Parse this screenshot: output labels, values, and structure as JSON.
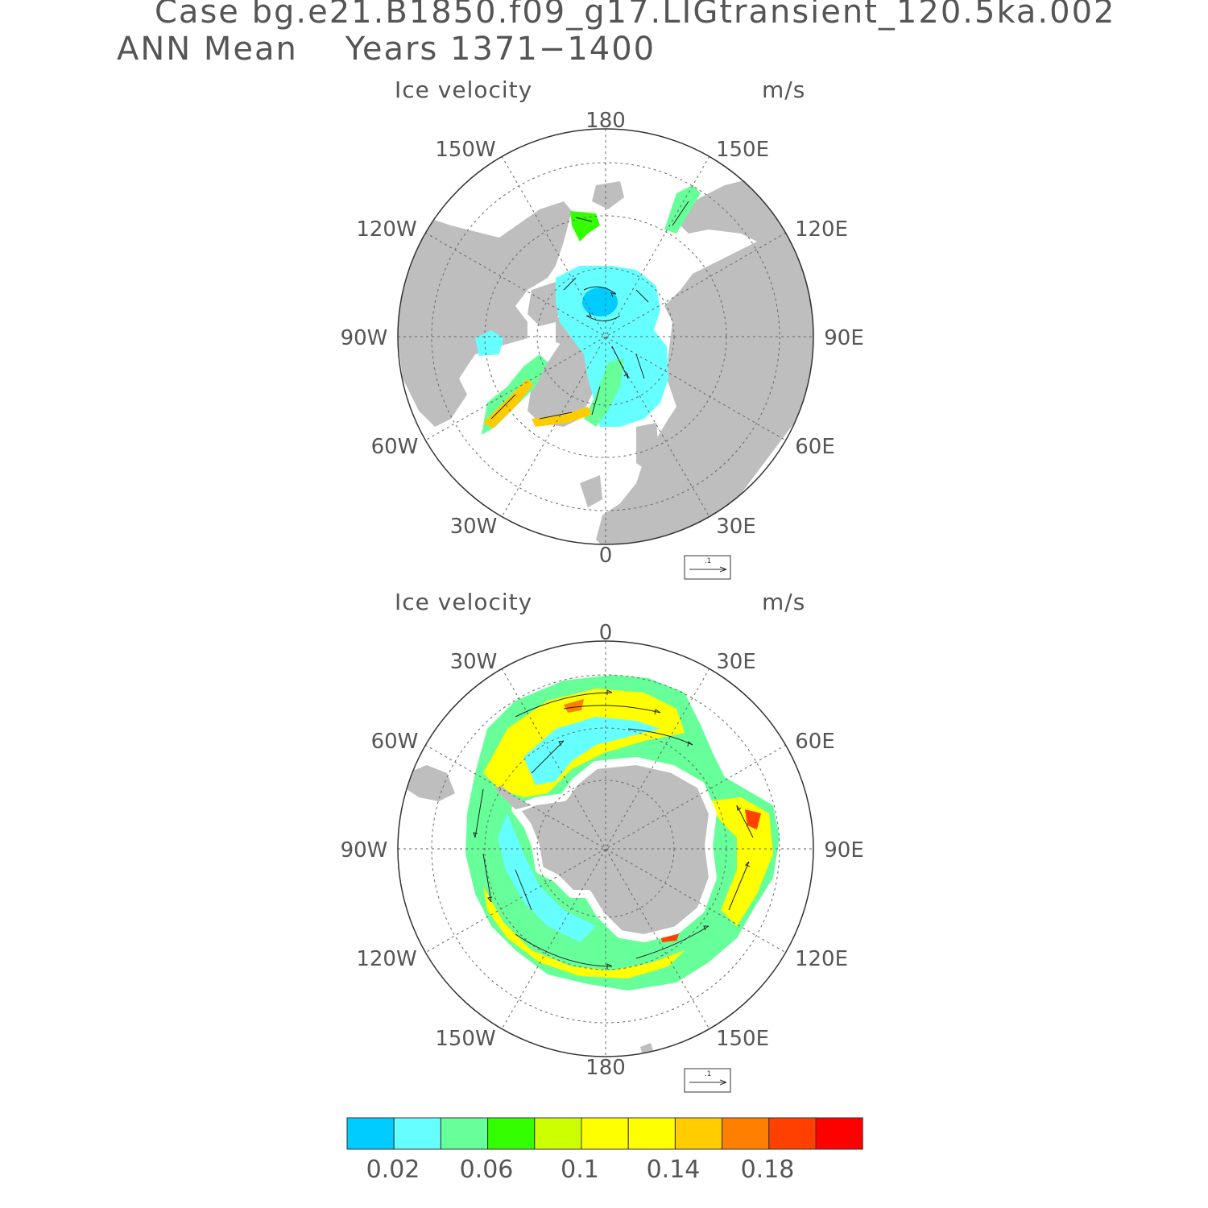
{
  "header": {
    "case_line": "Case bg.e21.B1850.f09_g17.LIGtransient_120.5ka.002",
    "period_line": "ANN Mean    Years 1371−1400"
  },
  "maps": [
    {
      "id": "north",
      "title": "Ice velocity",
      "units": "m/s",
      "longitude_labels": [
        "180",
        "150E",
        "120E",
        "90E",
        "60E",
        "30E",
        "0",
        "30W",
        "60W",
        "90W",
        "120W",
        "150W"
      ],
      "reference_vector_label": ".1"
    },
    {
      "id": "south",
      "title": "Ice velocity",
      "units": "m/s",
      "longitude_labels": [
        "0",
        "30E",
        "60E",
        "90E",
        "120E",
        "150E",
        "180",
        "150W",
        "120W",
        "90W",
        "60W",
        "30W"
      ],
      "reference_vector_label": ".1"
    }
  ],
  "colorbar": {
    "colors": [
      "#00ccff",
      "#66ffff",
      "#66ff99",
      "#33ff00",
      "#ccff00",
      "#ffff00",
      "#ffff00",
      "#ffcc00",
      "#ff8000",
      "#ff4000",
      "#ff0000"
    ],
    "tick_labels": [
      "0.02",
      "0.06",
      "0.1",
      "0.14",
      "0.18"
    ]
  },
  "colors": {
    "land": "#bebebe",
    "text": "#555555",
    "grid": "#666666"
  }
}
